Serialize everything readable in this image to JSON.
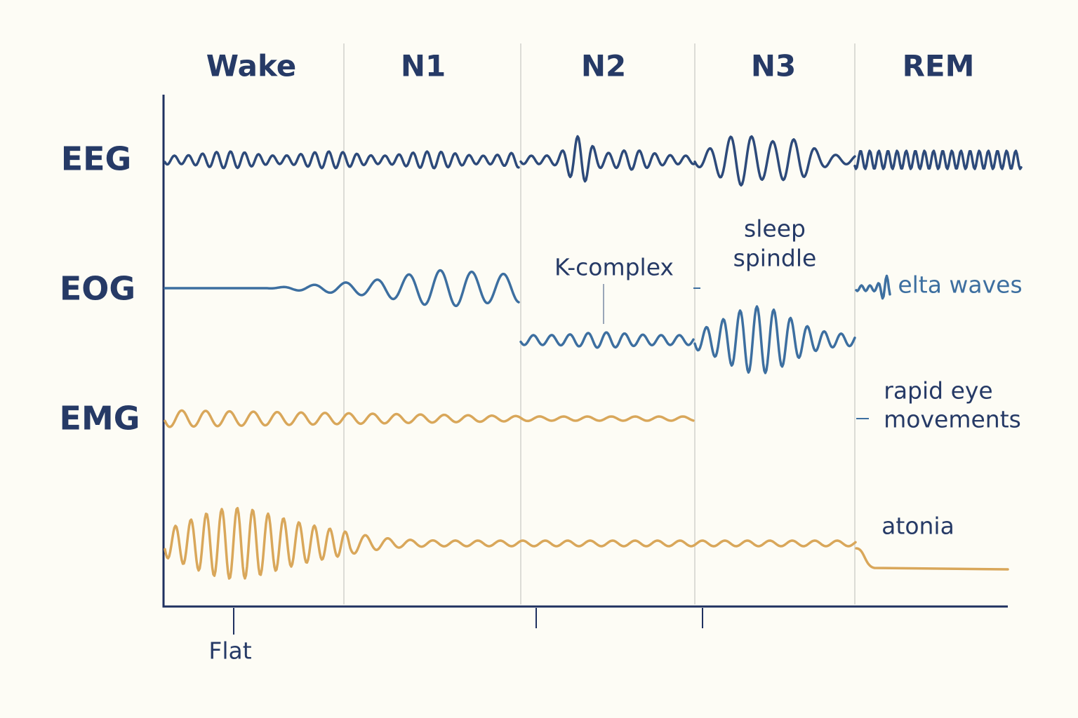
{
  "stages": [
    "Wake",
    "N1",
    "N2",
    "N3",
    "REM"
  ],
  "rows": [
    "EEG",
    "EOG",
    "EMG"
  ],
  "annotations": {
    "k_complex": "K-complex",
    "sleep_spindle": [
      "sleep",
      "spindle"
    ],
    "delta_waves": "elta waves",
    "rapid_eye_movements": [
      "rapid eye",
      "movements"
    ],
    "atonia": "atonia",
    "flat": "Flat"
  }
}
